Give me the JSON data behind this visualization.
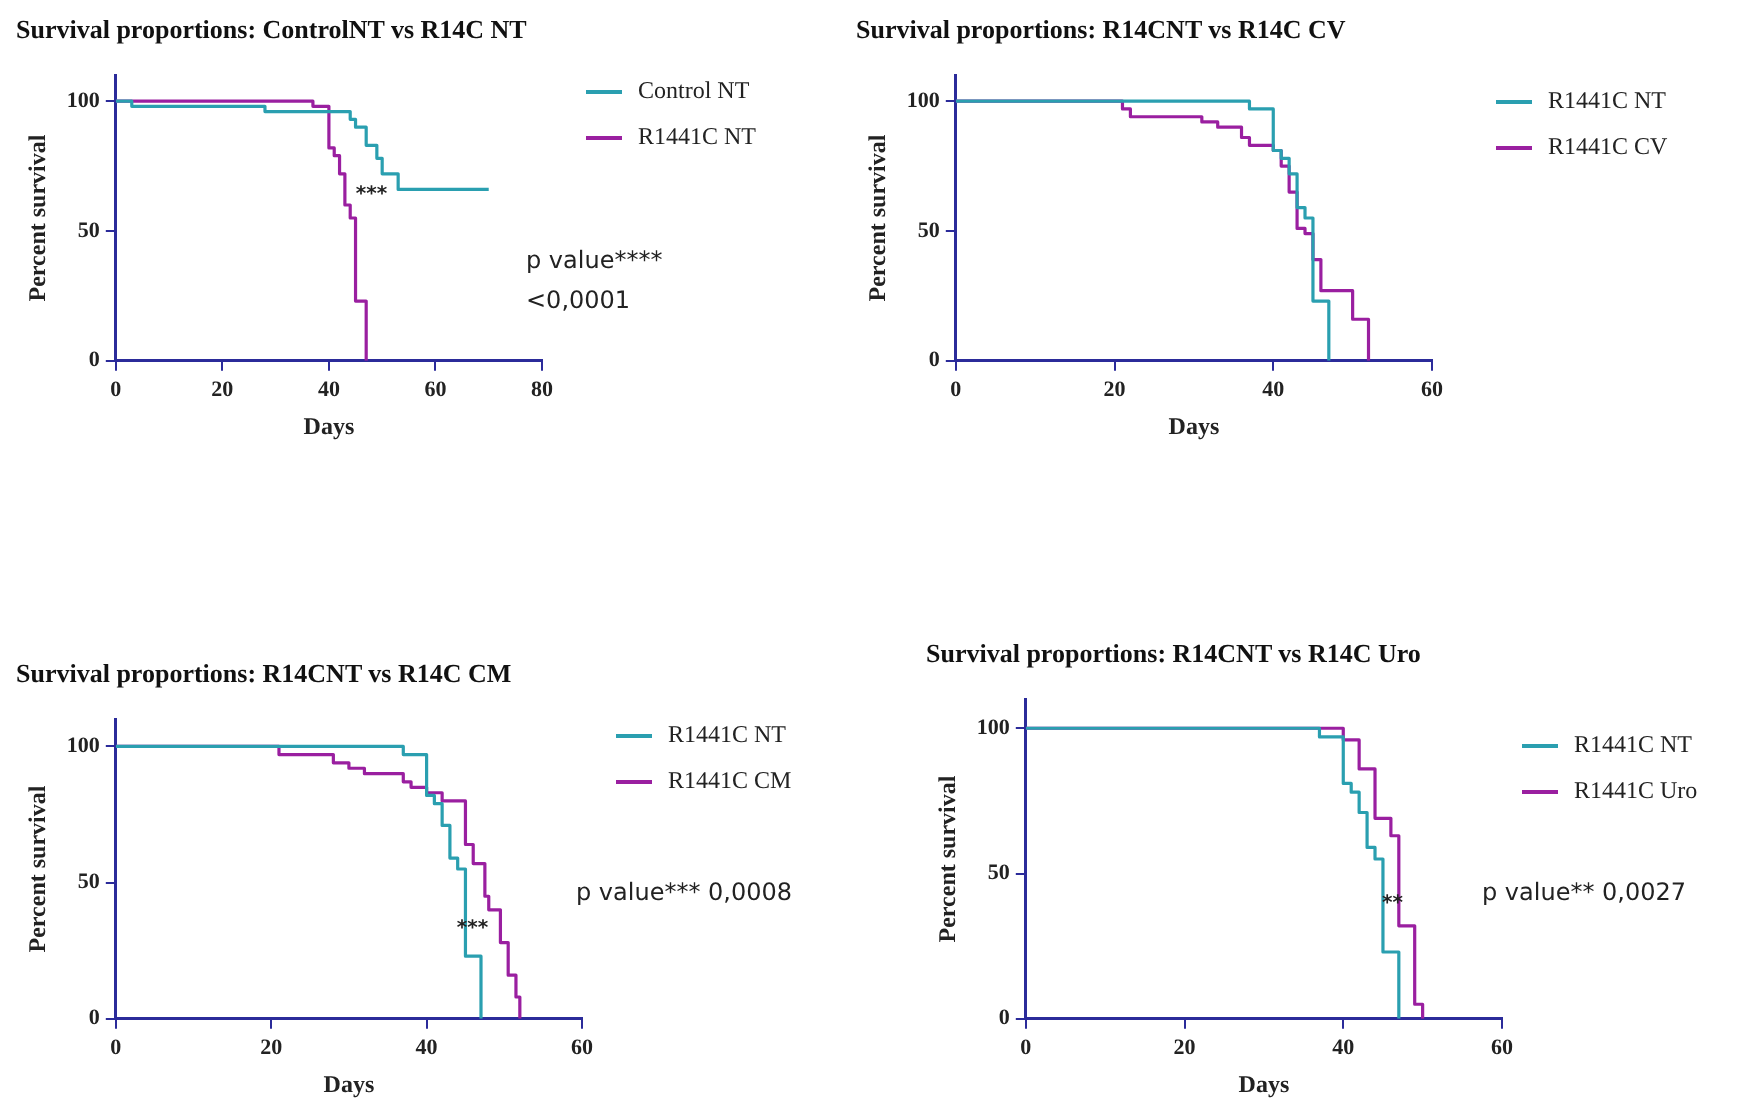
{
  "chart_data": [
    {
      "type": "step",
      "title": "Survival proportions: ControlNT vs R14C NT",
      "xlabel": "Days",
      "ylabel": "Percent survival",
      "xlim": [
        0,
        80
      ],
      "xticks": [
        0,
        20,
        40,
        60,
        80
      ],
      "ylim": [
        0,
        110
      ],
      "yticks": [
        0,
        50,
        100
      ],
      "grid": false,
      "legend": "right",
      "annotations": [
        "***",
        "p value****",
        "<0,0001"
      ],
      "series": [
        {
          "name": "Control NT",
          "color": "#2a9fb0",
          "x": [
            0,
            3,
            28,
            44,
            45,
            47,
            49,
            50,
            53,
            70
          ],
          "values": [
            100,
            98,
            96,
            93,
            90,
            83,
            78,
            72,
            66,
            66
          ]
        },
        {
          "name": "R1441C NT",
          "color": "#9a1fa0",
          "x": [
            0,
            37,
            40,
            41,
            42,
            43,
            44,
            45,
            47
          ],
          "values": [
            100,
            98,
            82,
            79,
            72,
            60,
            55,
            23,
            0
          ]
        }
      ]
    },
    {
      "type": "step",
      "title": "Survival proportions: R14CNT vs R14C CV",
      "xlabel": "Days",
      "ylabel": "Percent survival",
      "xlim": [
        0,
        60
      ],
      "xticks": [
        0,
        20,
        40,
        60
      ],
      "ylim": [
        0,
        110
      ],
      "yticks": [
        0,
        50,
        100
      ],
      "grid": false,
      "legend": "right",
      "series": [
        {
          "name": "R1441C NT",
          "color": "#2a9fb0",
          "x": [
            0,
            37,
            40,
            41,
            42,
            43,
            44,
            45,
            47
          ],
          "values": [
            100,
            97,
            81,
            78,
            72,
            59,
            55,
            23,
            0
          ]
        },
        {
          "name": "R1441C CV",
          "color": "#9a1fa0",
          "x": [
            0,
            21,
            22,
            31,
            33,
            36,
            37,
            40,
            41,
            42,
            43,
            44,
            45,
            46,
            50,
            52
          ],
          "values": [
            100,
            97,
            94,
            92,
            90,
            86,
            83,
            81,
            75,
            65,
            51,
            49,
            39,
            27,
            16,
            0
          ]
        }
      ]
    },
    {
      "type": "step",
      "title": "Survival proportions: R14CNT vs R14C CM",
      "xlabel": "Days",
      "ylabel": "Percent survival",
      "xlim": [
        0,
        60
      ],
      "xticks": [
        0,
        20,
        40,
        60
      ],
      "ylim": [
        0,
        110
      ],
      "yticks": [
        0,
        50,
        100
      ],
      "grid": false,
      "legend": "right",
      "annotations": [
        "***",
        "p value*** 0,0008"
      ],
      "series": [
        {
          "name": "R1441C NT",
          "color": "#2a9fb0",
          "x": [
            0,
            37,
            40,
            41,
            42,
            43,
            44,
            45,
            47
          ],
          "values": [
            100,
            97,
            82,
            79,
            71,
            59,
            55,
            23,
            0
          ]
        },
        {
          "name": "R1441C CM",
          "color": "#9a1fa0",
          "x": [
            0,
            21,
            28,
            30,
            32,
            37,
            38,
            40,
            42,
            45,
            46,
            47.5,
            48,
            49.5,
            50.5,
            51.5,
            52
          ],
          "values": [
            100,
            97,
            94,
            92,
            90,
            87,
            85,
            83,
            80,
            64,
            57,
            45,
            40,
            28,
            16,
            8,
            0
          ]
        }
      ]
    },
    {
      "type": "step",
      "title": "Survival proportions: R14CNT vs R14C Uro",
      "xlabel": "Days",
      "ylabel": "Percent survival",
      "xlim": [
        0,
        60
      ],
      "xticks": [
        0,
        20,
        40,
        60
      ],
      "ylim": [
        0,
        110
      ],
      "yticks": [
        0,
        50,
        100
      ],
      "grid": false,
      "legend": "right",
      "annotations": [
        "**",
        "p value** 0,0027"
      ],
      "series": [
        {
          "name": "R1441C NT",
          "color": "#2a9fb0",
          "x": [
            0,
            37,
            40,
            41,
            42,
            43,
            44,
            45,
            47
          ],
          "values": [
            100,
            97,
            81,
            78,
            71,
            59,
            55,
            23,
            0
          ]
        },
        {
          "name": "R1441C Uro",
          "color": "#9a1fa0",
          "x": [
            0,
            40,
            42,
            44,
            46,
            47,
            49,
            50
          ],
          "values": [
            100,
            96,
            86,
            69,
            63,
            32,
            5,
            0
          ]
        }
      ]
    }
  ]
}
